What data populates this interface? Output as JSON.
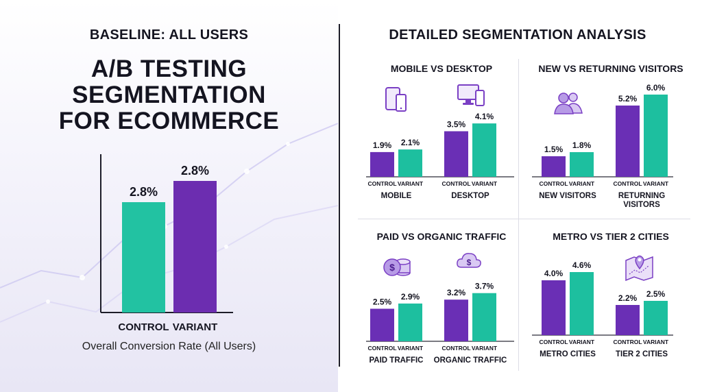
{
  "colors": {
    "control": "#6a2fb5",
    "variant": "#1dbf9f",
    "baseline_control": "#22c2a2",
    "baseline_variant": "#6c2db0"
  },
  "baseline": {
    "heading": "BASELINE: ALL USERS",
    "title_lines": [
      "A/B TESTING",
      "SEGMENTATION",
      "FOR ECOMMERCE"
    ],
    "caption": "Overall Conversion Rate (All Users)"
  },
  "segmentation": {
    "heading": "DETAILED SEGMENTATION ANALYSIS"
  },
  "chart_data": [
    {
      "type": "bar",
      "title": "",
      "categories": [
        "CONTROL",
        "VARIANT"
      ],
      "values": [
        2.8,
        2.8
      ],
      "value_labels": [
        "2.8%",
        "2.8%"
      ],
      "ylim": [
        0,
        3.3
      ],
      "xlabel": "Overall Conversion Rate (All Users)",
      "ylabel": ""
    },
    {
      "type": "bar",
      "title": "MOBILE VS DESKTOP",
      "icons": [
        "mobile-tablet-icon",
        "desktop-monitor-icon"
      ],
      "groups": [
        {
          "name": "MOBILE",
          "bars": [
            {
              "label": "CONTROL",
              "value": 1.9,
              "text": "1.9%"
            },
            {
              "label": "VARIANT",
              "value": 2.1,
              "text": "2.1%"
            }
          ]
        },
        {
          "name": "DESKTOP",
          "bars": [
            {
              "label": "CONTROL",
              "value": 3.5,
              "text": "3.5%"
            },
            {
              "label": "VARIANT",
              "value": 4.1,
              "text": "4.1%"
            }
          ]
        }
      ]
    },
    {
      "type": "bar",
      "title": "NEW VS RETURNING VISITORS",
      "icons": [
        "users-icon"
      ],
      "groups": [
        {
          "name": "NEW VISITORS",
          "bars": [
            {
              "label": "CONTROL",
              "value": 1.5,
              "text": "1.5%"
            },
            {
              "label": "VARIANT",
              "value": 1.8,
              "text": "1.8%"
            }
          ]
        },
        {
          "name": "RETURNING\nVISITORS",
          "bars": [
            {
              "label": "CONTROL",
              "value": 5.2,
              "text": "5.2%"
            },
            {
              "label": "VARIANT",
              "value": 6.0,
              "text": "6.0%"
            }
          ]
        }
      ]
    },
    {
      "type": "bar",
      "title": "PAID VS ORGANIC TRAFFIC",
      "icons": [
        "dollar-coins-icon",
        "dollar-cloud-icon"
      ],
      "groups": [
        {
          "name": "PAID TRAFFIC",
          "bars": [
            {
              "label": "CONTROL",
              "value": 2.5,
              "text": "2.5%"
            },
            {
              "label": "VARIANT",
              "value": 2.9,
              "text": "2.9%"
            }
          ]
        },
        {
          "name": "ORGANIC TRAFFIC",
          "bars": [
            {
              "label": "CONTROL",
              "value": 3.2,
              "text": "3.2%"
            },
            {
              "label": "VARIANT",
              "value": 3.7,
              "text": "3.7%"
            }
          ]
        }
      ]
    },
    {
      "type": "bar",
      "title": "METRO VS TIER 2 CITIES",
      "icons": [
        "map-pin-icon"
      ],
      "groups": [
        {
          "name": "METRO CITIES",
          "bars": [
            {
              "label": "CONTROL",
              "value": 4.0,
              "text": "4.0%"
            },
            {
              "label": "VARIANT",
              "value": 4.6,
              "text": "4.6%"
            }
          ]
        },
        {
          "name": "TIER 2 CITIES",
          "bars": [
            {
              "label": "CONTROL",
              "value": 2.2,
              "text": "2.2%"
            },
            {
              "label": "VARIANT",
              "value": 2.5,
              "text": "2.5%"
            }
          ]
        }
      ]
    }
  ]
}
